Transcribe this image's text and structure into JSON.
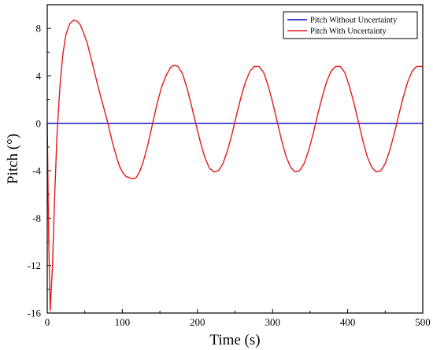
{
  "chart_data": {
    "type": "line",
    "xlabel": "Time (s)",
    "ylabel": "Pitch (°)",
    "xlim": [
      0,
      500
    ],
    "ylim": [
      -16,
      10
    ],
    "xticks": [
      "0",
      "100",
      "200",
      "300",
      "400",
      "500"
    ],
    "yticks": [
      "-16",
      "-12",
      "-8",
      "-4",
      "0",
      "4",
      "8"
    ],
    "grid": false,
    "legend_position": "top-right",
    "series": [
      {
        "name": "Pitch Without Uncertainty",
        "color": "#0000cc",
        "x": [
          0,
          500
        ],
        "y": [
          0,
          0
        ]
      },
      {
        "name": "Pitch With Uncertainty",
        "color": "#e41a1c",
        "x": [
          0,
          2,
          4,
          7,
          10,
          13,
          17,
          21,
          25,
          30,
          35,
          40,
          44,
          48,
          53,
          58,
          63,
          68,
          74,
          80,
          86,
          92,
          96,
          100,
          105,
          110,
          114,
          118,
          123,
          128,
          134,
          140,
          146,
          152,
          158,
          164,
          169,
          174,
          180,
          186,
          192,
          198,
          204,
          210,
          216,
          222,
          228,
          234,
          240,
          246,
          252,
          258,
          264,
          270,
          276,
          282,
          288,
          294,
          300,
          306,
          312,
          318,
          324,
          330,
          336,
          342,
          348,
          354,
          360,
          366,
          372,
          378,
          384,
          390,
          396,
          402,
          408,
          414,
          420,
          426,
          432,
          438,
          444,
          450,
          456,
          462,
          468,
          474,
          480,
          486,
          492,
          498,
          500
        ],
        "y": [
          0,
          -10,
          -15.8,
          -12,
          -6,
          -1,
          3.2,
          5.9,
          7.5,
          8.4,
          8.7,
          8.6,
          8.3,
          7.7,
          6.8,
          5.6,
          4.3,
          3.0,
          1.6,
          0.2,
          -1.4,
          -2.8,
          -3.6,
          -4.1,
          -4.5,
          -4.6,
          -4.7,
          -4.6,
          -4.1,
          -3.2,
          -1.8,
          -0.1,
          1.6,
          3.0,
          4.0,
          4.7,
          4.9,
          4.8,
          4.2,
          3.0,
          1.5,
          -0.1,
          -1.6,
          -2.9,
          -3.8,
          -4.1,
          -4.0,
          -3.4,
          -2.3,
          -0.9,
          0.7,
          2.2,
          3.5,
          4.4,
          4.8,
          4.8,
          4.3,
          3.2,
          1.8,
          0.2,
          -1.4,
          -2.8,
          -3.7,
          -4.1,
          -4.0,
          -3.4,
          -2.3,
          -0.9,
          0.7,
          2.2,
          3.5,
          4.4,
          4.8,
          4.8,
          4.3,
          3.2,
          1.8,
          0.2,
          -1.4,
          -2.8,
          -3.7,
          -4.1,
          -4.0,
          -3.4,
          -2.3,
          -0.9,
          0.7,
          2.2,
          3.5,
          4.4,
          4.8,
          4.8,
          4.8
        ]
      }
    ]
  }
}
